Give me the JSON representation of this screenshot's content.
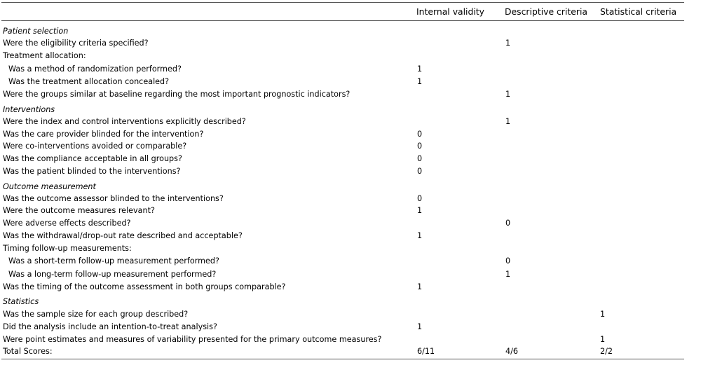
{
  "header": {
    "internal_validity": "Internal validity",
    "descriptive_criteria": "Descriptive criteria",
    "statistical_criteria": "Statistical criteria"
  },
  "rows": [
    {
      "label": "Patient selection",
      "section": true
    },
    {
      "label": "Were the eligibility criteria specified?",
      "descriptive": "1"
    },
    {
      "label": "Treatment allocation:"
    },
    {
      "label": "Was a method of randomization performed?",
      "indent": true,
      "internal": "1"
    },
    {
      "label": "Was the treatment allocation concealed?",
      "indent": true,
      "internal": "1"
    },
    {
      "label": "Were the groups similar at baseline regarding the most important prognostic indicators?",
      "descriptive": "1"
    },
    {
      "label": "Interventions",
      "section": true
    },
    {
      "label": "Were the index and control interventions explicitly described?",
      "descriptive": "1"
    },
    {
      "label": "Was the care provider blinded for the intervention?",
      "internal": "0"
    },
    {
      "label": "Were co-interventions avoided or comparable?",
      "internal": "0"
    },
    {
      "label": "Was the compliance acceptable in all groups?",
      "internal": "0"
    },
    {
      "label": "Was the patient blinded to the interventions?",
      "internal": "0"
    },
    {
      "label": "Outcome measurement",
      "section": true
    },
    {
      "label": "Was the outcome assessor blinded to the interventions?",
      "internal": "0"
    },
    {
      "label": "Were the outcome measures relevant?",
      "internal": "1"
    },
    {
      "label": "Were adverse effects described?",
      "descriptive": "0"
    },
    {
      "label": "Was the withdrawal/drop-out rate described and acceptable?",
      "internal": "1"
    },
    {
      "label": "Timing follow-up measurements:"
    },
    {
      "label": "Was a short-term follow-up measurement performed?",
      "indent": true,
      "descriptive": "0"
    },
    {
      "label": "Was a long-term follow-up measurement performed?",
      "indent": true,
      "descriptive": "1"
    },
    {
      "label": "Was the timing of the outcome assessment in both groups comparable?",
      "internal": "1"
    },
    {
      "label": "Statistics",
      "section": true
    },
    {
      "label": "Was the sample size for each group described?",
      "statistical": "1"
    },
    {
      "label": "Did the analysis include an intention-to-treat analysis?",
      "internal": "1"
    },
    {
      "label": "Were point estimates and measures of variability presented for the primary outcome measures?",
      "statistical": "1"
    },
    {
      "label": "Total Scores:",
      "internal": "6/11",
      "descriptive": "4/6",
      "statistical": "2/2"
    }
  ]
}
